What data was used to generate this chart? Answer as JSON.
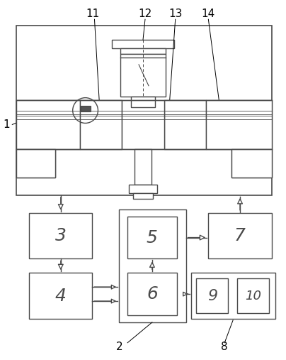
{
  "bg_color": "#ffffff",
  "lc": "#4a4a4a",
  "lc_dark": "#000000",
  "fig_w": 4.04,
  "fig_h": 5.07,
  "dpi": 100
}
